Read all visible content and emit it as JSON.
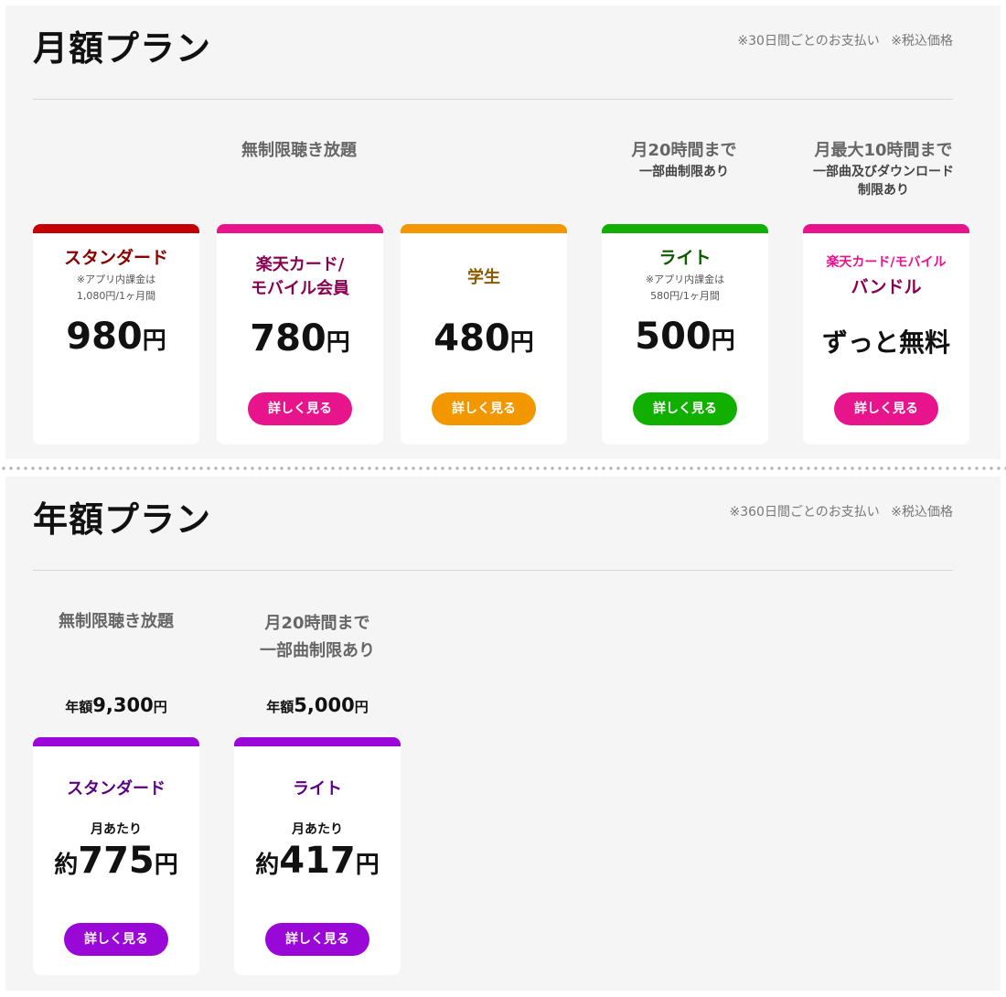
{
  "monthly": {
    "title": "月額プラン",
    "note": "※30日間ごとのお支払い ※税込価格",
    "group_unlimited": "無制限聴き放題",
    "group_20h": "月20時間まで",
    "group_20h_sub": "一部曲制限あり",
    "group_10h": "月最大10時間まで",
    "group_10h_sub_1": "一部曲及びダウンロード",
    "group_10h_sub_2": "制限あり",
    "cards": [
      {
        "name": "スタンダード",
        "note_1": "※アプリ内課金は",
        "note_2": "1,080円/1ヶ月間",
        "price": "980",
        "yen": "円",
        "color": "#c40000",
        "name_color": "#8a0000"
      },
      {
        "name_1": "楽天カード/",
        "name_2": "モバイル会員",
        "price": "780",
        "yen": "円",
        "button": "詳しく見る",
        "color": "#e8148c",
        "name_color": "#8a0050"
      },
      {
        "name": "学生",
        "price": "480",
        "yen": "円",
        "button": "詳しく見る",
        "color": "#f39700",
        "name_color": "#8a5a00"
      },
      {
        "name": "ライト",
        "note_1": "※アプリ内課金は",
        "note_2": "580円/1ヶ月間",
        "price": "500",
        "yen": "円",
        "button": "詳しく見る",
        "color": "#11b000",
        "name_color": "#0b5a00"
      },
      {
        "name_1": "楽天カード/モバイル",
        "name_2": "バンドル",
        "price_text": "ずっと無料",
        "button": "詳しく見る",
        "color": "#e8148c",
        "name_color": "#8a0050",
        "name1_color": "#e8148c"
      }
    ]
  },
  "yearly": {
    "title": "年額プラン",
    "note": "※360日間ごとのお支払い ※税込価格",
    "group_unlimited": "無制限聴き放題",
    "group_20h_1": "月20時間まで",
    "group_20h_2": "一部曲制限あり",
    "cards": [
      {
        "annual_label": "年額",
        "annual_price": "9,300",
        "yen": "円",
        "name": "スタンダード",
        "per_month": "月あたり",
        "approx": "約",
        "price": "775",
        "button": "詳しく見る",
        "color": "#9a08d8",
        "name_color": "#5a0080"
      },
      {
        "annual_label": "年額",
        "annual_price": "5,000",
        "yen": "円",
        "name": "ライト",
        "per_month": "月あたり",
        "approx": "約",
        "price": "417",
        "button": "詳しく見る",
        "color": "#9a08d8",
        "name_color": "#5a0080"
      }
    ]
  }
}
